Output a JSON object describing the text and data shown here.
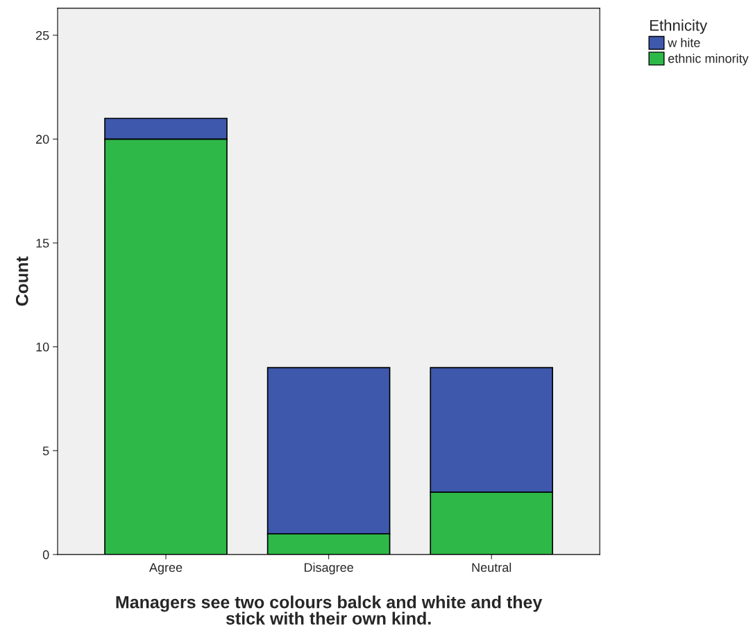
{
  "chart_data": {
    "type": "bar",
    "stacked": true,
    "xlabel": "Managers see two colours balck and white and they\nstick with their own kind.",
    "ylabel": "Count",
    "legend_title": "Ethnicity",
    "categories": [
      "Agree",
      "Disagree",
      "Neutral"
    ],
    "series": [
      {
        "name": "ethnic minority",
        "color": "#2eb848",
        "values": [
          20,
          1,
          3
        ]
      },
      {
        "name": "w hite",
        "color": "#3e58ac",
        "values": [
          1,
          8,
          6
        ]
      }
    ],
    "ylim": [
      0,
      26.3
    ],
    "yticks": [
      0,
      5,
      10,
      15,
      20,
      25
    ],
    "grid": false,
    "legend": "top right"
  }
}
